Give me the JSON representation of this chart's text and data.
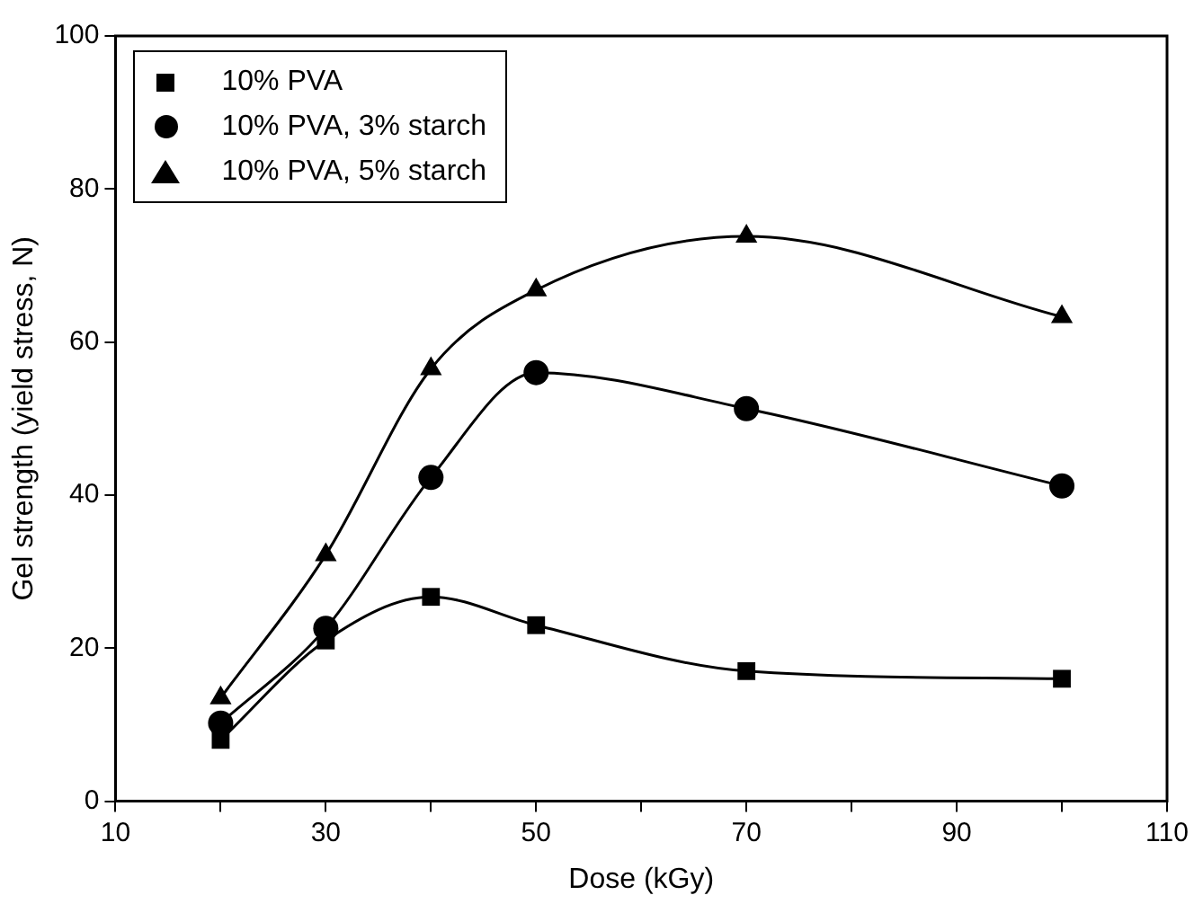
{
  "chart_data": {
    "type": "line",
    "xlabel": "Dose (kGy)",
    "ylabel": "Gel strength (yield stress, N)",
    "x": [
      20,
      30,
      40,
      50,
      70,
      100
    ],
    "series": [
      {
        "name": "10% PVA",
        "color": "#000000",
        "marker": "square",
        "values": [
          8,
          21,
          26.7,
          23,
          17,
          16
        ]
      },
      {
        "name": "10% PVA, 3% starch",
        "color": "#000000",
        "marker": "circle",
        "values": [
          10.2,
          22.6,
          42.3,
          56,
          51.3,
          41.2
        ]
      },
      {
        "name": "10% PVA, 5% starch",
        "color": "#000000",
        "marker": "triangle",
        "values": [
          13.5,
          32.2,
          56.5,
          66.8,
          73.8,
          63.3
        ]
      }
    ],
    "xlim": [
      10,
      110
    ],
    "xticks": [
      10,
      {
        "value": 20,
        "label": null
      },
      30,
      {
        "value": 40,
        "label": null
      },
      50,
      {
        "value": 60,
        "label": null
      },
      70,
      {
        "value": 80,
        "label": null
      },
      90,
      {
        "value": 100,
        "label": null
      },
      110
    ],
    "ylim": [
      0,
      100
    ],
    "yticks": [
      0,
      20,
      40,
      60,
      80,
      100
    ],
    "grid": false,
    "legend": "top left",
    "line_style": "solid"
  }
}
